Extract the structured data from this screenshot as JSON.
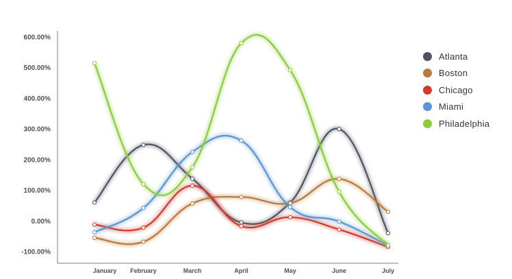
{
  "chart_data": {
    "type": "line",
    "title": "",
    "xlabel": "",
    "ylabel": "",
    "categories": [
      "January",
      "February",
      "March",
      "April",
      "May",
      "June",
      "July"
    ],
    "y_ticks": [
      "600.00%",
      "500.00%",
      "400.00%",
      "300.00%",
      "200.00%",
      "100.00%",
      "0.00%",
      "-100.00%"
    ],
    "y_tick_values": [
      600,
      500,
      400,
      300,
      200,
      100,
      0,
      -100
    ],
    "ylim": [
      -120,
      620
    ],
    "smooth": true,
    "grid": false,
    "legend_position": "right",
    "series": [
      {
        "name": "Atlanta",
        "color": "#4f5260",
        "values": [
          60,
          248,
          138,
          -5,
          60,
          300,
          -40
        ]
      },
      {
        "name": "Boston",
        "color": "#b87a3d",
        "values": [
          -55,
          -68,
          57,
          78,
          58,
          137,
          30
        ]
      },
      {
        "name": "Chicago",
        "color": "#d23a2d",
        "values": [
          -12,
          -22,
          115,
          -17,
          12,
          -28,
          -85
        ]
      },
      {
        "name": "Miami",
        "color": "#5b95d1",
        "values": [
          -37,
          42,
          225,
          262,
          45,
          -2,
          -80
        ]
      },
      {
        "name": "Philadelphia",
        "color": "#8ccc3a",
        "values": [
          515,
          120,
          175,
          580,
          492,
          95,
          -80
        ]
      }
    ]
  }
}
